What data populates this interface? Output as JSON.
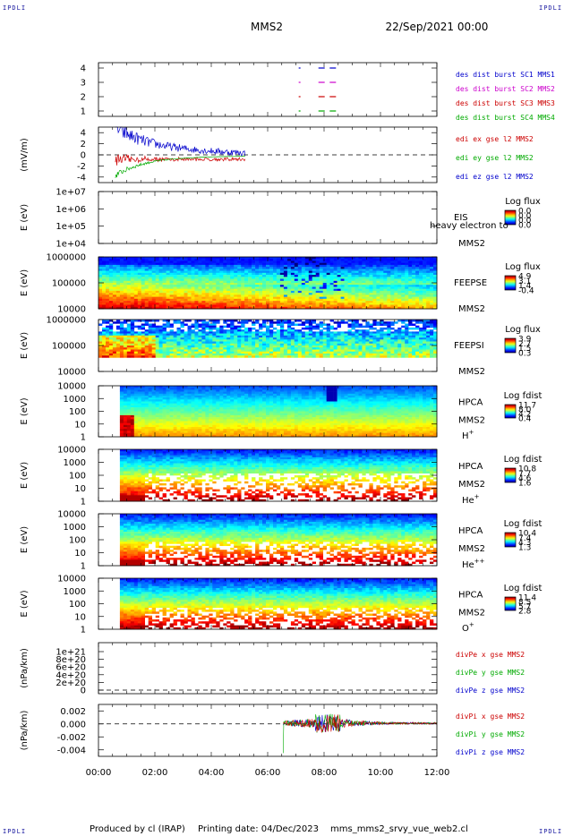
{
  "header": {
    "spacecraft": "MMS2",
    "datetime": "22/Sep/2021 00:00",
    "corner_label": "IPDLI"
  },
  "footer": {
    "produced_by": "Produced by cl (IRAP)",
    "printing_date": "Printing date: 04/Dec/2023",
    "file_name": "mms_mms2_srvy_vue_web2.cl"
  },
  "chart_data": {
    "type": "multi-panel time series / spectrograms",
    "x_ticks": [
      "00:00",
      "02:00",
      "04:00",
      "06:00",
      "08:00",
      "10:00",
      "12:00"
    ],
    "x_range_hours": [
      0,
      12
    ],
    "panels": [
      {
        "id": "des-dist-burst",
        "type": "event-ticks",
        "ylabel": "",
        "y_ticks": [
          "4",
          "3",
          "2",
          "1"
        ],
        "series": [
          {
            "name": "des dist burst SC1 MMS1",
            "color": "#0000cc",
            "y": 4,
            "times_h": [
              7.1,
              7.8,
              8.2
            ]
          },
          {
            "name": "des dist burst SC2 MMS2",
            "color": "#cc00cc",
            "y": 3,
            "times_h": [
              7.1,
              7.8,
              8.2
            ]
          },
          {
            "name": "des dist burst SC3 MMS3",
            "color": "#cc0000",
            "y": 2,
            "times_h": [
              7.1,
              7.8,
              8.2
            ]
          },
          {
            "name": "des dist burst SC4 MMS4",
            "color": "#00aa00",
            "y": 1,
            "times_h": [
              7.1,
              7.8,
              8.2
            ]
          }
        ]
      },
      {
        "id": "edi-e-field",
        "type": "line",
        "ylabel": "(mV/m)",
        "y_ticks": [
          "4",
          "2",
          "0",
          "-2",
          "-4"
        ],
        "ylim": [
          -5,
          5
        ],
        "series": [
          {
            "name": "edi ex gse l2 MMS2",
            "color": "#cc0000"
          },
          {
            "name": "edi ey gse l2 MMS2",
            "color": "#00aa00"
          },
          {
            "name": "edi ez gse l2 MMS2",
            "color": "#0000cc"
          }
        ],
        "time_coverage_h": [
          0.6,
          5.2
        ]
      },
      {
        "id": "eis",
        "type": "spectrogram",
        "ylabel": "E (eV)",
        "y_ticks": [
          "1e+07",
          "1e+06",
          "1e+05",
          "1e+04"
        ],
        "instrument": "EIS",
        "species": "heavy electron to",
        "spacecraft": "MMS2",
        "colorbar": {
          "title": "Log flux",
          "ticks": [
            "0.0",
            "0.0",
            "0.0",
            "0.0"
          ]
        },
        "empty": true
      },
      {
        "id": "feepse",
        "type": "spectrogram",
        "ylabel": "E (eV)",
        "y_ticks": [
          "1000000",
          "100000",
          "10000"
        ],
        "instrument": "FEEPSE",
        "spacecraft": "MMS2",
        "colorbar": {
          "title": "Log flux",
          "ticks": [
            "4.9",
            "3.1",
            "1.4",
            "-0.4"
          ]
        }
      },
      {
        "id": "feepsi",
        "type": "spectrogram",
        "ylabel": "E (eV)",
        "y_ticks": [
          "1000000",
          "100000",
          "10000"
        ],
        "instrument": "FEEPSI",
        "spacecraft": "MMS2",
        "colorbar": {
          "title": "Log flux",
          "ticks": [
            "3.9",
            "2.7",
            "1.5",
            "0.3"
          ]
        }
      },
      {
        "id": "hpca-h",
        "type": "spectrogram",
        "ylabel": "E (eV)",
        "y_ticks": [
          "10000",
          "1000",
          "100",
          "10",
          "1"
        ],
        "instrument": "HPCA",
        "spacecraft": "MMS2",
        "species": "H",
        "species_charge": "+",
        "colorbar": {
          "title": "Log fdist",
          "ticks": [
            "11.7",
            "8.0",
            "4.2",
            "0.4"
          ]
        }
      },
      {
        "id": "hpca-he",
        "type": "spectrogram",
        "ylabel": "E (eV)",
        "y_ticks": [
          "10000",
          "1000",
          "100",
          "10",
          "1"
        ],
        "instrument": "HPCA",
        "spacecraft": "MMS2",
        "species": "He",
        "species_charge": "+",
        "colorbar": {
          "title": "Log fdist",
          "ticks": [
            "10.8",
            "7.7",
            "4.6",
            "1.6"
          ]
        }
      },
      {
        "id": "hpca-he2",
        "type": "spectrogram",
        "ylabel": "E (eV)",
        "y_ticks": [
          "10000",
          "1000",
          "100",
          "10",
          "1"
        ],
        "instrument": "HPCA",
        "spacecraft": "MMS2",
        "species": "He",
        "species_charge": "++",
        "colorbar": {
          "title": "Log fdist",
          "ticks": [
            "10.4",
            "7.4",
            "4.3",
            "1.3"
          ]
        }
      },
      {
        "id": "hpca-o",
        "type": "spectrogram",
        "ylabel": "E (eV)",
        "y_ticks": [
          "10000",
          "1000",
          "100",
          "10",
          "1"
        ],
        "instrument": "HPCA",
        "spacecraft": "MMS2",
        "species": "O",
        "species_charge": "+",
        "colorbar": {
          "title": "Log fdist",
          "ticks": [
            "11.4",
            "8.5",
            "5.7",
            "2.8"
          ]
        }
      },
      {
        "id": "divpe",
        "type": "line",
        "ylabel": "(nPa/km)",
        "y_ticks": [
          "1e+21",
          "8e+20",
          "6e+20",
          "4e+20",
          "2e+20",
          "0"
        ],
        "ylim": [
          0,
          1e+21
        ],
        "series": [
          {
            "name": "divPe x gse MMS2",
            "color": "#cc0000"
          },
          {
            "name": "divPe y gse MMS2",
            "color": "#00aa00"
          },
          {
            "name": "divPe z gse MMS2",
            "color": "#0000cc"
          }
        ],
        "empty": true
      },
      {
        "id": "divpi",
        "type": "line",
        "ylabel": "(nPa/km)",
        "y_ticks": [
          "0.002",
          "0.000",
          "-0.002",
          "-0.004"
        ],
        "ylim": [
          -0.005,
          0.003
        ],
        "series": [
          {
            "name": "divPi x gse MMS2",
            "color": "#cc0000"
          },
          {
            "name": "divPi y gse MMS2",
            "color": "#00aa00"
          },
          {
            "name": "divPi z gse MMS2",
            "color": "#0000cc"
          }
        ],
        "time_coverage_h": [
          6.55,
          12
        ]
      }
    ]
  }
}
